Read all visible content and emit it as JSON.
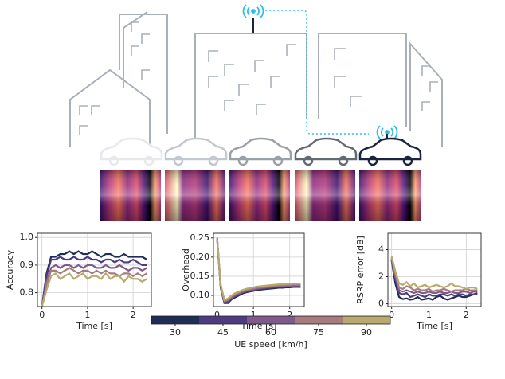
{
  "chart_data": [
    {
      "type": "line",
      "ylabel": "Accuracy",
      "xlabel": "Time [s]",
      "x": [
        0,
        0.1,
        0.2,
        0.3,
        0.4,
        0.5,
        0.6,
        0.7,
        0.8,
        0.9,
        1.0,
        1.1,
        1.2,
        1.3,
        1.4,
        1.5,
        1.6,
        1.7,
        1.8,
        1.9,
        2.0,
        2.1,
        2.2,
        2.3
      ],
      "xlim": [
        -0.1,
        2.4
      ],
      "xticks": [
        0,
        1,
        2
      ],
      "ylim": [
        0.75,
        1.015
      ],
      "yticks": [
        0.8,
        0.9,
        {
          "value": 1,
          "label": "1.0"
        }
      ],
      "grid": true,
      "series": [
        {
          "color": "#1f2d56",
          "values": [
            0.75,
            0.87,
            0.93,
            0.93,
            0.94,
            0.94,
            0.95,
            0.94,
            0.95,
            0.94,
            0.94,
            0.95,
            0.94,
            0.93,
            0.94,
            0.94,
            0.93,
            0.93,
            0.94,
            0.93,
            0.93,
            0.93,
            0.93,
            0.92
          ]
        },
        {
          "color": "#4d3c80",
          "values": [
            0.75,
            0.86,
            0.92,
            0.92,
            0.93,
            0.92,
            0.92,
            0.93,
            0.92,
            0.92,
            0.93,
            0.92,
            0.92,
            0.91,
            0.92,
            0.92,
            0.91,
            0.92,
            0.91,
            0.91,
            0.92,
            0.91,
            0.9,
            0.9
          ]
        },
        {
          "color": "#7f5a8c",
          "values": [
            0.75,
            0.84,
            0.89,
            0.9,
            0.89,
            0.9,
            0.9,
            0.89,
            0.9,
            0.89,
            0.9,
            0.9,
            0.89,
            0.89,
            0.9,
            0.89,
            0.89,
            0.9,
            0.89,
            0.88,
            0.89,
            0.89,
            0.88,
            0.89
          ]
        },
        {
          "color": "#a67c7c",
          "values": [
            0.75,
            0.83,
            0.88,
            0.88,
            0.87,
            0.88,
            0.89,
            0.88,
            0.87,
            0.88,
            0.88,
            0.87,
            0.88,
            0.87,
            0.88,
            0.87,
            0.87,
            0.86,
            0.87,
            0.87,
            0.86,
            0.87,
            0.86,
            0.87
          ]
        },
        {
          "color": "#b8aa6e",
          "values": [
            0.75,
            0.81,
            0.86,
            0.87,
            0.85,
            0.86,
            0.87,
            0.85,
            0.86,
            0.87,
            0.85,
            0.86,
            0.86,
            0.85,
            0.87,
            0.85,
            0.86,
            0.86,
            0.84,
            0.86,
            0.85,
            0.85,
            0.84,
            0.85
          ]
        }
      ]
    },
    {
      "type": "line",
      "ylabel": "Overhead",
      "xlabel": "Time [s]",
      "x": [
        0,
        0.1,
        0.2,
        0.3,
        0.4,
        0.5,
        0.6,
        0.7,
        0.8,
        0.9,
        1.0,
        1.1,
        1.2,
        1.3,
        1.4,
        1.5,
        1.6,
        1.7,
        1.8,
        1.9,
        2.0,
        2.1,
        2.2,
        2.3
      ],
      "xlim": [
        -0.1,
        2.4
      ],
      "xticks": [
        0,
        1,
        2
      ],
      "ylim": [
        0.071,
        0.262
      ],
      "yticks": [
        {
          "value": 0.1,
          "label": "0.10"
        },
        0.15,
        {
          "value": 0.2,
          "label": "0.20"
        },
        0.25
      ],
      "grid": true,
      "series": [
        {
          "color": "#1f2d56",
          "values": [
            0.25,
            0.12,
            0.08,
            0.08,
            0.09,
            0.095,
            0.1,
            0.105,
            0.108,
            0.11,
            0.112,
            0.114,
            0.115,
            0.116,
            0.117,
            0.118,
            0.119,
            0.12,
            0.12,
            0.121,
            0.121,
            0.122,
            0.122,
            0.122
          ]
        },
        {
          "color": "#4d3c80",
          "values": [
            0.25,
            0.122,
            0.082,
            0.083,
            0.092,
            0.098,
            0.102,
            0.107,
            0.11,
            0.112,
            0.114,
            0.116,
            0.117,
            0.118,
            0.119,
            0.12,
            0.121,
            0.122,
            0.122,
            0.123,
            0.123,
            0.124,
            0.124,
            0.124
          ]
        },
        {
          "color": "#7f5a8c",
          "values": [
            0.25,
            0.124,
            0.084,
            0.086,
            0.094,
            0.1,
            0.105,
            0.109,
            0.112,
            0.114,
            0.116,
            0.118,
            0.119,
            0.12,
            0.121,
            0.122,
            0.123,
            0.124,
            0.124,
            0.125,
            0.125,
            0.126,
            0.126,
            0.126
          ]
        },
        {
          "color": "#a67c7c",
          "values": [
            0.25,
            0.126,
            0.086,
            0.089,
            0.097,
            0.103,
            0.107,
            0.111,
            0.114,
            0.116,
            0.118,
            0.12,
            0.121,
            0.122,
            0.123,
            0.124,
            0.125,
            0.126,
            0.126,
            0.127,
            0.127,
            0.128,
            0.128,
            0.128
          ]
        },
        {
          "color": "#b8aa6e",
          "values": [
            0.25,
            0.128,
            0.088,
            0.092,
            0.1,
            0.106,
            0.11,
            0.114,
            0.117,
            0.119,
            0.121,
            0.123,
            0.124,
            0.125,
            0.126,
            0.127,
            0.128,
            0.129,
            0.129,
            0.13,
            0.13,
            0.131,
            0.131,
            0.131
          ]
        }
      ]
    },
    {
      "type": "line",
      "ylabel": "RSRP error [dB]",
      "xlabel": "Time [s]",
      "x": [
        0,
        0.1,
        0.2,
        0.3,
        0.4,
        0.5,
        0.6,
        0.7,
        0.8,
        0.9,
        1.0,
        1.1,
        1.2,
        1.3,
        1.4,
        1.5,
        1.6,
        1.7,
        1.8,
        1.9,
        2.0,
        2.1,
        2.2,
        2.3
      ],
      "xlim": [
        -0.1,
        2.4
      ],
      "xticks": [
        0,
        1,
        2
      ],
      "ylim": [
        -0.2,
        5.2
      ],
      "yticks": [
        0,
        2,
        4
      ],
      "grid": true,
      "series": [
        {
          "color": "#1f2d56",
          "values": [
            3.2,
            1.5,
            0.5,
            0.35,
            0.4,
            0.3,
            0.35,
            0.5,
            0.3,
            0.35,
            0.4,
            0.3,
            0.5,
            0.6,
            0.4,
            0.3,
            0.4,
            0.5,
            0.6,
            0.5,
            0.5,
            0.6,
            0.7,
            0.7
          ]
        },
        {
          "color": "#4d3c80",
          "values": [
            3.3,
            1.8,
            0.8,
            0.7,
            0.8,
            0.5,
            0.6,
            0.7,
            0.6,
            0.5,
            0.7,
            0.6,
            0.6,
            0.7,
            0.7,
            0.6,
            0.7,
            0.6,
            0.7,
            0.7,
            0.6,
            0.7,
            0.7,
            0.8
          ]
        },
        {
          "color": "#7f5a8c",
          "values": [
            3.2,
            2.0,
            1.0,
            0.9,
            1.0,
            0.9,
            0.8,
            0.9,
            0.8,
            0.8,
            0.9,
            0.8,
            0.8,
            0.9,
            0.8,
            0.8,
            0.9,
            0.8,
            0.8,
            0.9,
            0.9,
            0.8,
            0.9,
            0.9
          ]
        },
        {
          "color": "#a67c7c",
          "values": [
            3.4,
            2.2,
            1.2,
            1.1,
            1.3,
            1.2,
            1.0,
            1.1,
            1.0,
            1.0,
            1.1,
            0.9,
            1.0,
            1.0,
            1.1,
            1.0,
            0.9,
            1.0,
            1.0,
            1.0,
            1.1,
            1.0,
            1.0,
            1.0
          ]
        },
        {
          "color": "#b8aa6e",
          "values": [
            3.5,
            2.4,
            1.5,
            1.4,
            1.6,
            1.3,
            1.5,
            1.2,
            1.3,
            1.4,
            1.2,
            1.3,
            1.4,
            1.3,
            1.2,
            1.3,
            1.5,
            1.3,
            1.3,
            1.2,
            1.1,
            1.2,
            1.2,
            1.1
          ]
        }
      ]
    }
  ],
  "colorbar": {
    "label": "UE speed [km/h]",
    "ticks": [
      30,
      45,
      60,
      75,
      90
    ],
    "colors": [
      "#1f2d56",
      "#4d3c80",
      "#7f5a8c",
      "#a67c7c",
      "#b8aa6e"
    ]
  }
}
